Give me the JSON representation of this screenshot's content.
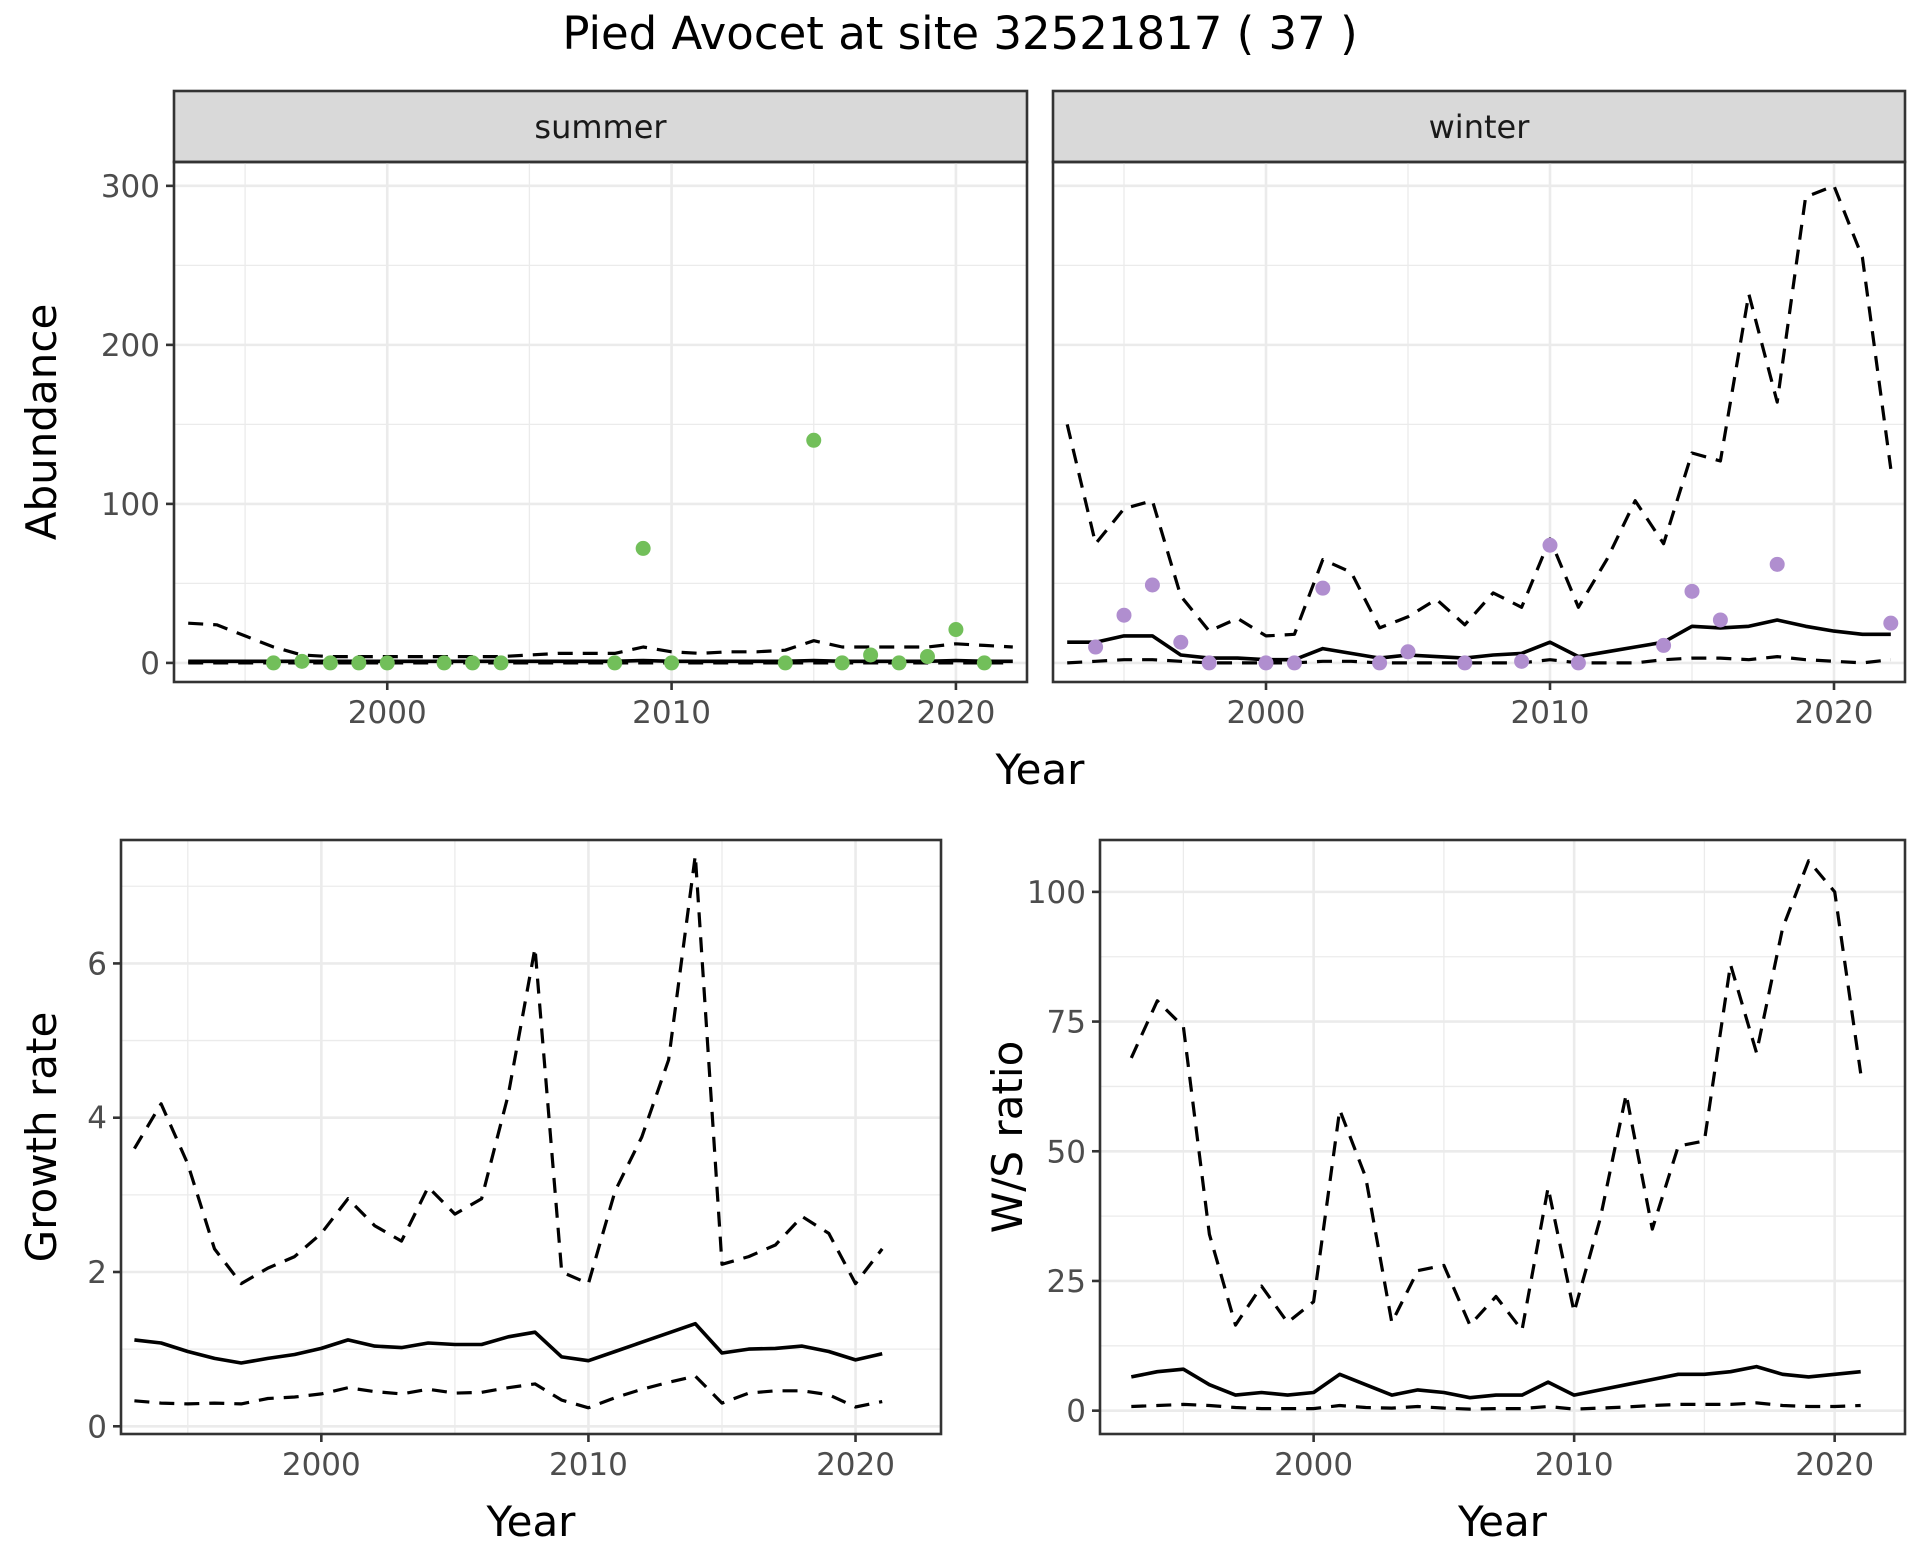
{
  "title": "Pied Avocet at site 32521817 ( 37 )",
  "colors": {
    "summer_points": "#72bf5a",
    "winter_points": "#b08ecf"
  },
  "chart_data": [
    {
      "id": "abundance",
      "type": "line",
      "facets": [
        "summer",
        "winter"
      ],
      "xlabel": "Year",
      "ylabel": "Abundance",
      "xlim": [
        1992.5,
        2022.5
      ],
      "ylim": [
        -12,
        315
      ],
      "xticks": [
        2000,
        2010,
        2020
      ],
      "yticks": [
        0,
        100,
        200,
        300
      ],
      "grid": true,
      "panels": {
        "summer": {
          "x": [
            1993,
            1994,
            1995,
            1996,
            1997,
            1998,
            1999,
            2000,
            2001,
            2002,
            2003,
            2004,
            2005,
            2006,
            2007,
            2008,
            2009,
            2010,
            2011,
            2012,
            2013,
            2014,
            2015,
            2016,
            2017,
            2018,
            2019,
            2020,
            2021,
            2022
          ],
          "fitted": [
            1,
            1,
            1,
            1,
            1,
            1,
            1,
            1,
            1,
            1,
            1,
            1,
            1,
            1,
            1,
            1,
            1.5,
            1,
            1,
            1,
            1,
            1,
            1.5,
            1,
            1,
            1,
            1,
            1.5,
            1,
            1
          ],
          "upper": [
            25,
            24,
            17,
            10,
            5,
            4,
            4,
            4,
            4,
            4,
            4,
            4,
            5,
            6,
            6,
            6,
            10,
            7,
            6,
            7,
            7,
            8,
            14,
            10,
            10,
            10,
            10,
            12,
            11,
            10
          ],
          "lower": [
            0,
            0,
            0,
            0,
            0,
            0,
            0,
            0,
            0,
            0,
            0,
            0,
            0,
            0,
            0,
            0,
            0,
            0,
            0,
            0,
            0,
            0,
            0,
            0,
            0,
            0,
            0,
            0,
            0,
            0
          ],
          "observed": {
            "x": [
              1996,
              1997,
              1998,
              1999,
              2000,
              2002,
              2003,
              2004,
              2008,
              2009,
              2010,
              2014,
              2015,
              2016,
              2017,
              2018,
              2019,
              2020,
              2021
            ],
            "y": [
              0,
              1,
              0,
              0,
              0,
              0,
              0,
              0,
              0,
              72,
              0,
              0,
              140,
              0,
              5,
              0,
              4,
              21,
              0
            ]
          }
        },
        "winter": {
          "x": [
            1993,
            1994,
            1995,
            1996,
            1997,
            1998,
            1999,
            2000,
            2001,
            2002,
            2003,
            2004,
            2005,
            2006,
            2007,
            2008,
            2009,
            2010,
            2011,
            2012,
            2013,
            2014,
            2015,
            2016,
            2017,
            2018,
            2019,
            2020,
            2021,
            2022
          ],
          "fitted": [
            13,
            13,
            17,
            17,
            5,
            3,
            3,
            2,
            2,
            9,
            6,
            3,
            5,
            4,
            3,
            5,
            6,
            13,
            4,
            7,
            10,
            13,
            23,
            22,
            23,
            27,
            23,
            20,
            18,
            18
          ],
          "upper": [
            150,
            75,
            97,
            102,
            42,
            20,
            28,
            17,
            18,
            65,
            57,
            22,
            29,
            40,
            24,
            44,
            35,
            78,
            35,
            65,
            102,
            75,
            132,
            127,
            232,
            164,
            293,
            300,
            255,
            122
          ],
          "lower": [
            0,
            1,
            2,
            2,
            1,
            0,
            0,
            0,
            0,
            1,
            1,
            0,
            0,
            0,
            0,
            0,
            0,
            2,
            0,
            0,
            0,
            2,
            3,
            3,
            2,
            4,
            2,
            1,
            0,
            2
          ],
          "observed": {
            "x": [
              1994,
              1995,
              1996,
              1997,
              1998,
              2000,
              2001,
              2002,
              2004,
              2005,
              2007,
              2009,
              2010,
              2011,
              2014,
              2015,
              2016,
              2018,
              2022
            ],
            "y": [
              10,
              30,
              49,
              13,
              0,
              0,
              0,
              47,
              0,
              7,
              0,
              1,
              74,
              0,
              11,
              45,
              27,
              62,
              25
            ]
          }
        }
      }
    },
    {
      "id": "growth",
      "type": "line",
      "xlabel": "Year",
      "ylabel": "Growth rate",
      "xlim": [
        1992.5,
        2023.2
      ],
      "ylim": [
        -0.1,
        7.6
      ],
      "xticks": [
        2000,
        2010,
        2020
      ],
      "yticks": [
        0,
        2,
        4,
        6
      ],
      "grid": true,
      "x": [
        1993,
        1994,
        1995,
        1996,
        1997,
        1998,
        1999,
        2000,
        2001,
        2002,
        2003,
        2004,
        2005,
        2006,
        2007,
        2008,
        2009,
        2010,
        2011,
        2012,
        2013,
        2014,
        2015,
        2016,
        2017,
        2018,
        2019,
        2020,
        2021
      ],
      "fitted": [
        1.12,
        1.08,
        0.97,
        0.88,
        0.82,
        0.88,
        0.93,
        1.01,
        1.12,
        1.04,
        1.02,
        1.08,
        1.06,
        1.06,
        1.16,
        1.22,
        0.9,
        0.85,
        0.97,
        1.09,
        1.21,
        1.33,
        0.95,
        1.0,
        1.01,
        1.04,
        0.97,
        0.86,
        0.94
      ],
      "upper": [
        3.6,
        4.18,
        3.4,
        2.3,
        1.85,
        2.05,
        2.2,
        2.5,
        2.95,
        2.6,
        2.4,
        3.1,
        2.75,
        2.95,
        4.3,
        6.2,
        2.0,
        1.85,
        3.05,
        3.75,
        4.75,
        7.4,
        2.1,
        2.2,
        2.35,
        2.72,
        2.5,
        1.85,
        2.3
      ],
      "lower": [
        0.33,
        0.3,
        0.29,
        0.3,
        0.29,
        0.36,
        0.38,
        0.42,
        0.5,
        0.45,
        0.42,
        0.48,
        0.43,
        0.44,
        0.5,
        0.55,
        0.34,
        0.24,
        0.37,
        0.48,
        0.57,
        0.65,
        0.3,
        0.43,
        0.46,
        0.46,
        0.41,
        0.25,
        0.32
      ]
    },
    {
      "id": "ws_ratio",
      "type": "line",
      "xlabel": "Year",
      "ylabel": "W/S ratio",
      "xlim": [
        1991.8,
        2022.7
      ],
      "ylim": [
        -4.5,
        110
      ],
      "xticks": [
        2000,
        2010,
        2020
      ],
      "yticks": [
        0,
        25,
        50,
        75,
        100
      ],
      "grid": true,
      "x": [
        1993,
        1994,
        1995,
        1996,
        1997,
        1998,
        1999,
        2000,
        2001,
        2002,
        2003,
        2004,
        2005,
        2006,
        2007,
        2008,
        2009,
        2010,
        2011,
        2012,
        2013,
        2014,
        2015,
        2016,
        2017,
        2018,
        2019,
        2020,
        2021
      ],
      "fitted": [
        6.5,
        7.5,
        8,
        5,
        3,
        3.5,
        3,
        3.5,
        7,
        5,
        3,
        4,
        3.5,
        2.5,
        3,
        3,
        5.5,
        3,
        4,
        5,
        6,
        7,
        7,
        7.5,
        8.5,
        7,
        6.5,
        7,
        7.5
      ],
      "upper": [
        68,
        79,
        74,
        34,
        16.5,
        24,
        17,
        21,
        58,
        45,
        17,
        27,
        28,
        16.5,
        22,
        15.5,
        43,
        19,
        37,
        61,
        35,
        51,
        52,
        86,
        69,
        93,
        106,
        100,
        65
      ],
      "lower": [
        0.8,
        1,
        1.2,
        1,
        0.6,
        0.4,
        0.4,
        0.4,
        1,
        0.6,
        0.5,
        0.8,
        0.5,
        0.3,
        0.4,
        0.4,
        0.8,
        0.3,
        0.5,
        0.7,
        1,
        1.2,
        1.2,
        1.2,
        1.5,
        1,
        0.8,
        0.8,
        1
      ]
    }
  ]
}
